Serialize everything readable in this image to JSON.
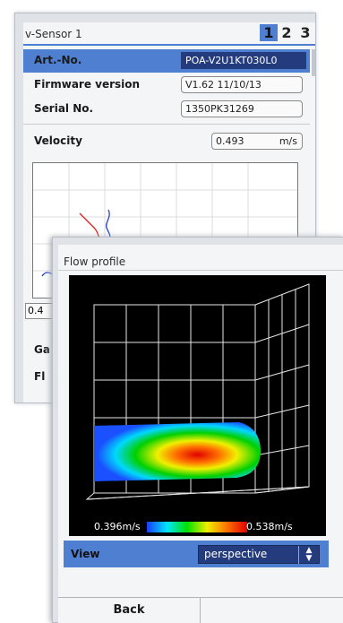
{
  "sensor_window": {
    "title": "v-Sensor 1",
    "tabs": [
      {
        "label": "1",
        "active": true
      },
      {
        "label": "2",
        "active": false
      },
      {
        "label": "3",
        "active": false
      }
    ],
    "fields": [
      {
        "label": "Art.-No.",
        "value": "POA-V2U1KT030L0",
        "selected": true
      },
      {
        "label": "Firmware version",
        "value": "V1.62 11/10/13",
        "selected": false
      },
      {
        "label": "Serial No.",
        "value": "1350PK31269",
        "selected": false
      }
    ],
    "velocity": {
      "label": "Velocity",
      "value": "0.493",
      "unit": "m/s"
    },
    "partial_value": "0.4",
    "partial_label_1": "Ga",
    "partial_label_2": "Fl"
  },
  "flow_window": {
    "title": "Flow profile",
    "colorbar_min": "0.396m/s",
    "colorbar_max": "0.538m/s",
    "view_label": "View",
    "view_value": "perspective",
    "buttons": [
      "Back",
      ""
    ]
  },
  "colors": {
    "accent_blue": "#4f7fd0",
    "selected_dark": "#243b7d"
  }
}
